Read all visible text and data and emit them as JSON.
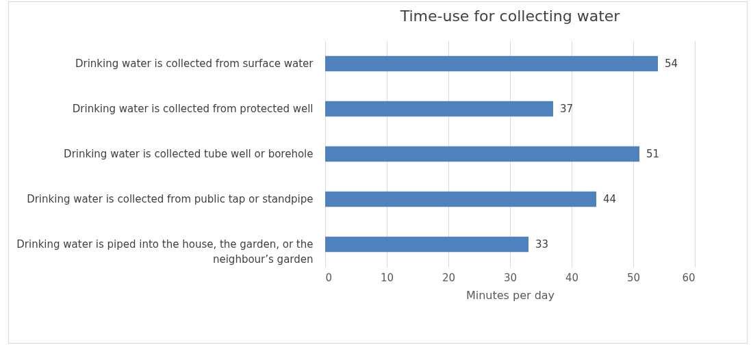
{
  "chart_data": {
    "type": "bar",
    "orientation": "horizontal",
    "title": "Time-use for collecting water",
    "categories": [
      "Drinking water is collected from surface water",
      "Drinking water is collected from protected well",
      "Drinking water is collected tube well or borehole",
      "Drinking water is collected from public tap or standpipe",
      "Drinking water is piped into the house, the garden, or the neighbour’s garden"
    ],
    "values": [
      54,
      37,
      51,
      44,
      33
    ],
    "color": "#4f81bd",
    "xlabel": "Minutes per day",
    "xlim": [
      0,
      60
    ],
    "xticks": [
      0,
      10,
      20,
      30,
      40,
      50,
      60
    ],
    "grid": "x",
    "data_labels": true
  }
}
